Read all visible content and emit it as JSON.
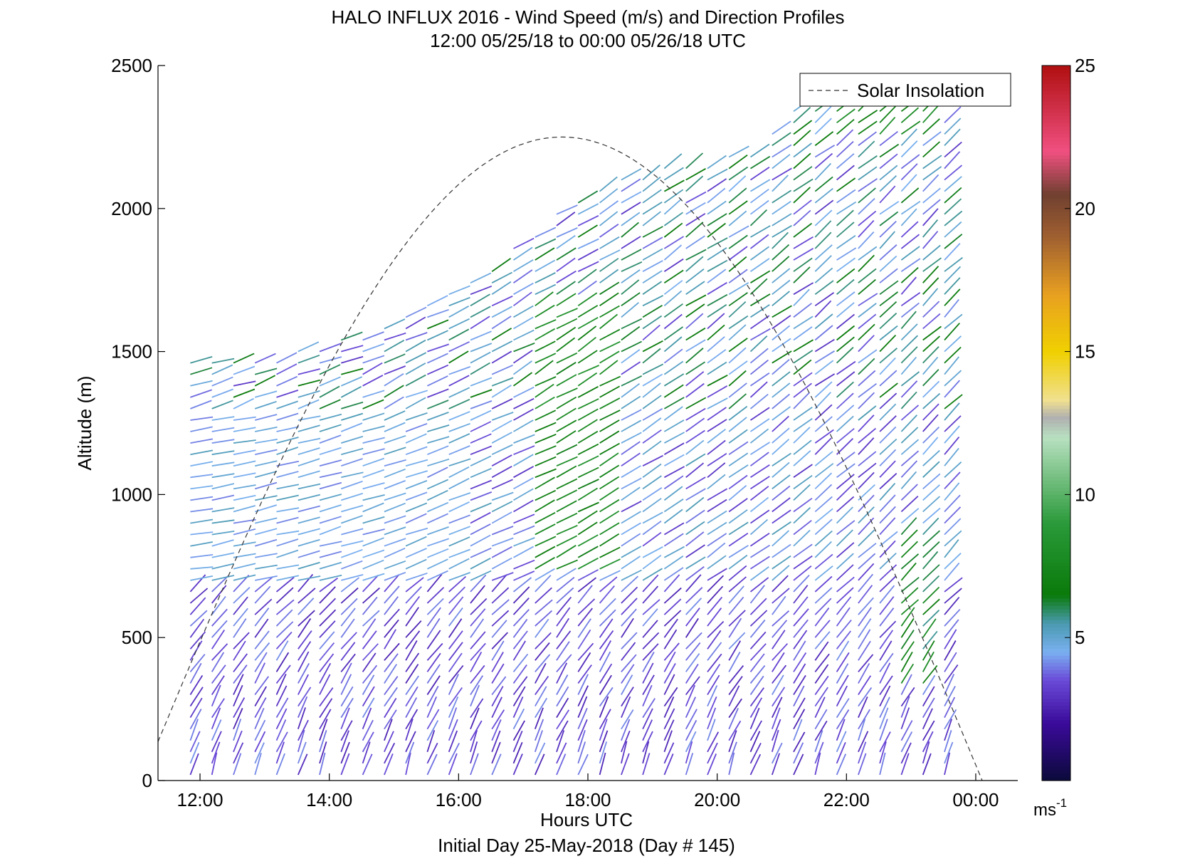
{
  "chart_data": {
    "type": "wind-barb-profile",
    "title": "HALO INFLUX 2016 - Wind Speed (m/s) and Direction Profiles",
    "subtitle": "12:00 05/25/18 to 00:00 05/26/18  UTC",
    "xlabel": "Hours UTC",
    "footer": "Initial Day 25-May-2018 (Day # 145)",
    "ylabel": "Altitude (m)",
    "xlim": [
      11.35,
      24.65
    ],
    "ylim": [
      0,
      2500
    ],
    "x_ticks": [
      {
        "value": 12,
        "label": "12:00"
      },
      {
        "value": 14,
        "label": "14:00"
      },
      {
        "value": 16,
        "label": "16:00"
      },
      {
        "value": 18,
        "label": "18:00"
      },
      {
        "value": 20,
        "label": "20:00"
      },
      {
        "value": 22,
        "label": "22:00"
      },
      {
        "value": 24,
        "label": "00:00"
      }
    ],
    "y_ticks": [
      {
        "value": 0,
        "label": "0"
      },
      {
        "value": 500,
        "label": "500"
      },
      {
        "value": 1000,
        "label": "1000"
      },
      {
        "value": 1500,
        "label": "1500"
      },
      {
        "value": 2000,
        "label": "2000"
      },
      {
        "value": 2500,
        "label": "2500"
      }
    ],
    "legend": {
      "label": "Solar Insolation",
      "placement": "top-right"
    },
    "solar_insolation": {
      "peak_hour": 17.6,
      "half_width_hours": 6.5,
      "peak_altitude": 2250
    },
    "colorbar": {
      "range": [
        0,
        25
      ],
      "ticks": [
        {
          "value": 5,
          "label": "5"
        },
        {
          "value": 10,
          "label": "10"
        },
        {
          "value": 15,
          "label": "15"
        },
        {
          "value": 20,
          "label": "20"
        },
        {
          "value": 25,
          "label": "25"
        }
      ],
      "unit_base": "ms",
      "unit_exp": "-1",
      "stops": [
        {
          "v": 0,
          "c": "#0a0a3a"
        },
        {
          "v": 2,
          "c": "#3a0a9a"
        },
        {
          "v": 3.5,
          "c": "#6a4ad8"
        },
        {
          "v": 4.5,
          "c": "#7ab0f0"
        },
        {
          "v": 5.5,
          "c": "#4a9ab0"
        },
        {
          "v": 6.5,
          "c": "#0a7a0a"
        },
        {
          "v": 9,
          "c": "#2a9a3a"
        },
        {
          "v": 12,
          "c": "#b8e0c0"
        },
        {
          "v": 12.7,
          "c": "#b0b0b0"
        },
        {
          "v": 13.3,
          "c": "#f0e090"
        },
        {
          "v": 15,
          "c": "#f0d000"
        },
        {
          "v": 17,
          "c": "#e8a020"
        },
        {
          "v": 19,
          "c": "#a06030"
        },
        {
          "v": 20.5,
          "c": "#704030"
        },
        {
          "v": 22,
          "c": "#f05080"
        },
        {
          "v": 25,
          "c": "#b01010"
        }
      ]
    },
    "profiles": {
      "start_hour": 11.85,
      "end_hour": 23.8,
      "step_hours": 0.3333,
      "altitude_step": 40,
      "top_altitude_by_hour": [
        {
          "h": 11.85,
          "alt": 1480
        },
        {
          "h": 13,
          "alt": 1490
        },
        {
          "h": 14,
          "alt": 1530
        },
        {
          "h": 15.4,
          "alt": 1660
        },
        {
          "h": 16.5,
          "alt": 1800
        },
        {
          "h": 17.5,
          "alt": 2000
        },
        {
          "h": 19,
          "alt": 2150
        },
        {
          "h": 20.5,
          "alt": 2200
        },
        {
          "h": 21.5,
          "alt": 2420
        },
        {
          "h": 23.8,
          "alt": 2320
        }
      ]
    }
  }
}
